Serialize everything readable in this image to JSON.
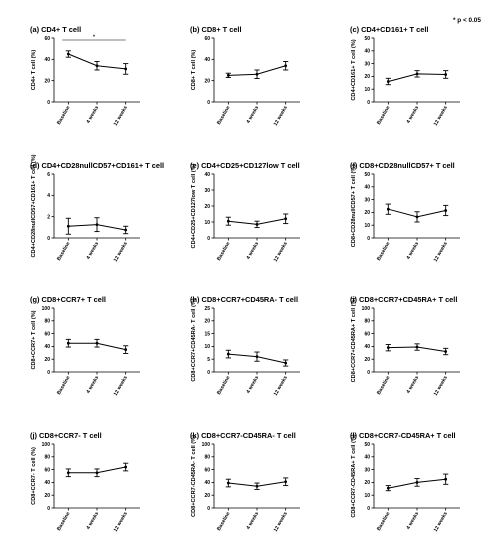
{
  "figure": {
    "significance_note": "* p < 0.05"
  },
  "chart_data": [
    {
      "type": "line",
      "title": "(a) CD4+ T cell",
      "ylabel": "CD4+ T cell (%)",
      "categories": [
        "Baseline",
        "4 weeks",
        "12 weeks"
      ],
      "values": [
        45,
        34,
        31
      ],
      "errors": [
        3,
        4,
        5
      ],
      "ylim": [
        0,
        60
      ],
      "yticks": [
        0,
        20,
        40,
        60
      ],
      "annotation": {
        "label": "*",
        "from": "Baseline",
        "to": "12 weeks"
      }
    },
    {
      "type": "line",
      "title": "(b) CD8+ T cell",
      "ylabel": "CD8+ T cell (%)",
      "categories": [
        "Baseline",
        "4 weeks",
        "12 weeks"
      ],
      "values": [
        25,
        26,
        34
      ],
      "errors": [
        2,
        4,
        4
      ],
      "ylim": [
        0,
        60
      ],
      "yticks": [
        0,
        20,
        40,
        60
      ]
    },
    {
      "type": "line",
      "title": "(c) CD4+CD161+ T cell",
      "ylabel": "CD4+CD161+ T cell (%)",
      "categories": [
        "Baseline",
        "4 weeks",
        "12 weeks"
      ],
      "values": [
        16,
        22,
        21.5
      ],
      "errors": [
        2.5,
        2.5,
        3
      ],
      "ylim": [
        0,
        50
      ],
      "yticks": [
        0,
        10,
        20,
        30,
        40,
        50
      ]
    },
    {
      "type": "line",
      "title": "(d) CD4+CD28nullCD57+CD161+ T cell",
      "ylabel": "CD4+CD28nullCD57+CD161+ T cell (%)",
      "categories": [
        "Baseline",
        "4 weeks",
        "12 weeks"
      ],
      "values": [
        1.1,
        1.25,
        0.75
      ],
      "errors": [
        0.75,
        0.65,
        0.35
      ],
      "ylim": [
        0,
        6
      ],
      "yticks": [
        0,
        2,
        4,
        6
      ]
    },
    {
      "type": "line",
      "title": "(e) CD4+CD25+CD127low T cell",
      "ylabel": "CD4+CD25+CD127low T cell (%)",
      "categories": [
        "Baseline",
        "4 weeks",
        "12 weeks"
      ],
      "values": [
        10.5,
        8.5,
        12
      ],
      "errors": [
        2.5,
        2,
        3
      ],
      "ylim": [
        0,
        40
      ],
      "yticks": [
        0,
        10,
        20,
        30,
        40
      ]
    },
    {
      "type": "line",
      "title": "(f) CD8+CD28nullCD57+ T cell",
      "ylabel": "CD8+CD28nullCD57+ T cell (%)",
      "categories": [
        "Baseline",
        "4 weeks",
        "12 weeks"
      ],
      "values": [
        22.5,
        16.5,
        21.5
      ],
      "errors": [
        4,
        4,
        4
      ],
      "ylim": [
        0,
        50
      ],
      "yticks": [
        0,
        10,
        20,
        30,
        40,
        50
      ]
    },
    {
      "type": "line",
      "title": "(g) CD8+CCR7+ T cell",
      "ylabel": "CD8+CCR7+ T cell (%)",
      "categories": [
        "Baseline",
        "4 weeks",
        "12 weeks"
      ],
      "values": [
        45,
        45,
        35
      ],
      "errors": [
        6,
        6,
        6
      ],
      "ylim": [
        0,
        100
      ],
      "yticks": [
        0,
        20,
        40,
        60,
        80,
        100
      ]
    },
    {
      "type": "line",
      "title": "(h) CD8+CCR7+CD45RA- T cell",
      "ylabel": "CD8+CCR7+CD45RA- T cell (%)",
      "categories": [
        "Baseline",
        "4 weeks",
        "12 weeks"
      ],
      "values": [
        7,
        6,
        3.5
      ],
      "errors": [
        1.5,
        1.8,
        1.2
      ],
      "ylim": [
        0,
        25
      ],
      "yticks": [
        0,
        5,
        10,
        15,
        20,
        25
      ]
    },
    {
      "type": "line",
      "title": "(i) CD8+CCR7+CD45RA+ T cell",
      "ylabel": "CD8+CCR7+CD45RA+ T cell (%)",
      "categories": [
        "Baseline",
        "4 weeks",
        "12 weeks"
      ],
      "values": [
        38,
        39,
        32
      ],
      "errors": [
        5,
        5,
        5
      ],
      "ylim": [
        0,
        100
      ],
      "yticks": [
        0,
        20,
        40,
        60,
        80,
        100
      ]
    },
    {
      "type": "line",
      "title": "(j) CD8+CCR7- T cell",
      "ylabel": "CD8+CCR7- T cell (%)",
      "categories": [
        "Baseline",
        "4 weeks",
        "12 weeks"
      ],
      "values": [
        55,
        55,
        64
      ],
      "errors": [
        6,
        6,
        6
      ],
      "ylim": [
        0,
        100
      ],
      "yticks": [
        0,
        20,
        40,
        60,
        80,
        100
      ]
    },
    {
      "type": "line",
      "title": "(k) CD8+CCR7-CD45RA- T cell",
      "ylabel": "CD8+CCR7-CD45RA- T cell (%)",
      "categories": [
        "Baseline",
        "4 weeks",
        "12 weeks"
      ],
      "values": [
        39,
        34,
        41
      ],
      "errors": [
        6,
        5,
        6
      ],
      "ylim": [
        0,
        100
      ],
      "yticks": [
        0,
        20,
        40,
        60,
        80,
        100
      ]
    },
    {
      "type": "line",
      "title": "(l) CD8+CCR7-CD45RA+ T cell",
      "ylabel": "CD8+CCR7-CD45RA+ T cell (%)",
      "categories": [
        "Baseline",
        "4 weeks",
        "12 weeks"
      ],
      "values": [
        15.5,
        20,
        22.5
      ],
      "errors": [
        2,
        3,
        4
      ],
      "ylim": [
        0,
        50
      ],
      "yticks": [
        0,
        10,
        20,
        30,
        40,
        50
      ]
    }
  ]
}
